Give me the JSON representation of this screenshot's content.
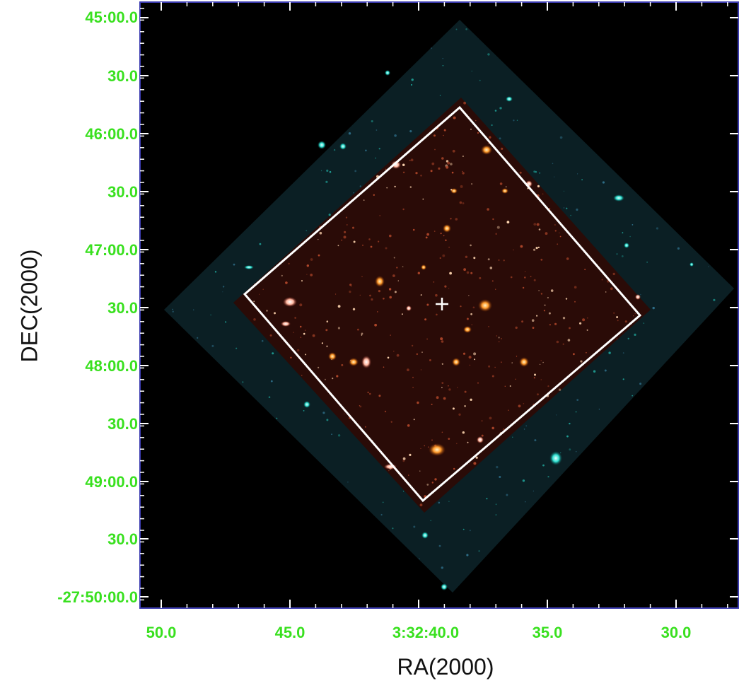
{
  "axes": {
    "y_title": "DEC(2000)",
    "x_title": "RA(2000)",
    "y_ticks": [
      "45:00.0",
      "30.0",
      "46:00.0",
      "30.0",
      "47:00.0",
      "30.0",
      "48:00.0",
      "30.0",
      "49:00.0",
      "30.0",
      "-27:50:00.0"
    ],
    "x_ticks": [
      "50.0",
      "45.0",
      "3:32:40.0",
      "35.0",
      "30.0"
    ]
  },
  "colors": {
    "tick_label": "#39e01f",
    "frame": "#3b3bb0",
    "sky_background": "#000000",
    "outer_mosaic": "#0f2a30",
    "inner_mosaic": "#2a0d08",
    "footprint_outline": "#ffffff"
  },
  "image": {
    "description_icons": [
      "crosshair-icon"
    ]
  }
}
